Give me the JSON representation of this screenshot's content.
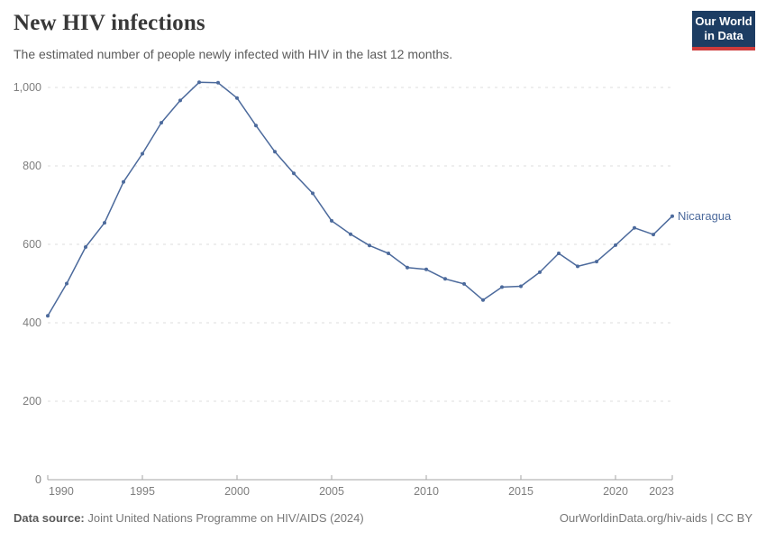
{
  "header": {
    "title": "New HIV infections",
    "subtitle": "The estimated number of people newly infected with HIV in the last 12 months.",
    "logo": {
      "line1": "Our World",
      "line2": "in Data",
      "bg_color": "#1d3d63",
      "bar_color": "#cf3b3b"
    }
  },
  "chart_data": {
    "type": "line",
    "title": "New HIV infections",
    "xlabel": "",
    "ylabel": "",
    "xlim": [
      1990,
      2023
    ],
    "ylim": [
      0,
      1000
    ],
    "grid": true,
    "legend_position": "inline-end-of-line",
    "xticks": [
      1990,
      1995,
      2000,
      2005,
      2010,
      2015,
      2020,
      2023
    ],
    "yticks": [
      0,
      200,
      400,
      600,
      800,
      1000
    ],
    "x": [
      1990,
      1991,
      1992,
      1993,
      1994,
      1995,
      1996,
      1997,
      1998,
      1999,
      2000,
      2001,
      2002,
      2003,
      2004,
      2005,
      2006,
      2007,
      2008,
      2009,
      2010,
      2011,
      2012,
      2013,
      2014,
      2015,
      2016,
      2017,
      2018,
      2019,
      2020,
      2021,
      2022,
      2023
    ],
    "series": [
      {
        "name": "Nicaragua",
        "color": "#4c6a9c",
        "values": [
          418,
          500,
          593,
          655,
          759,
          831,
          910,
          967,
          1013,
          1012,
          973,
          903,
          836,
          781,
          730,
          660,
          626,
          597,
          577,
          541,
          536,
          512,
          499,
          458,
          491,
          493,
          529,
          577,
          544,
          556,
          598,
          642,
          625,
          672
        ]
      }
    ],
    "colors": {
      "gridline": "#dcdcdc",
      "axis": "#a5a5a5",
      "tick_label": "#7e7e7e"
    }
  },
  "footer": {
    "source_label": "Data source:",
    "source_text": " Joint United Nations Programme on HIV/AIDS (2024)",
    "right_text": "OurWorldinData.org/hiv-aids | CC BY"
  }
}
